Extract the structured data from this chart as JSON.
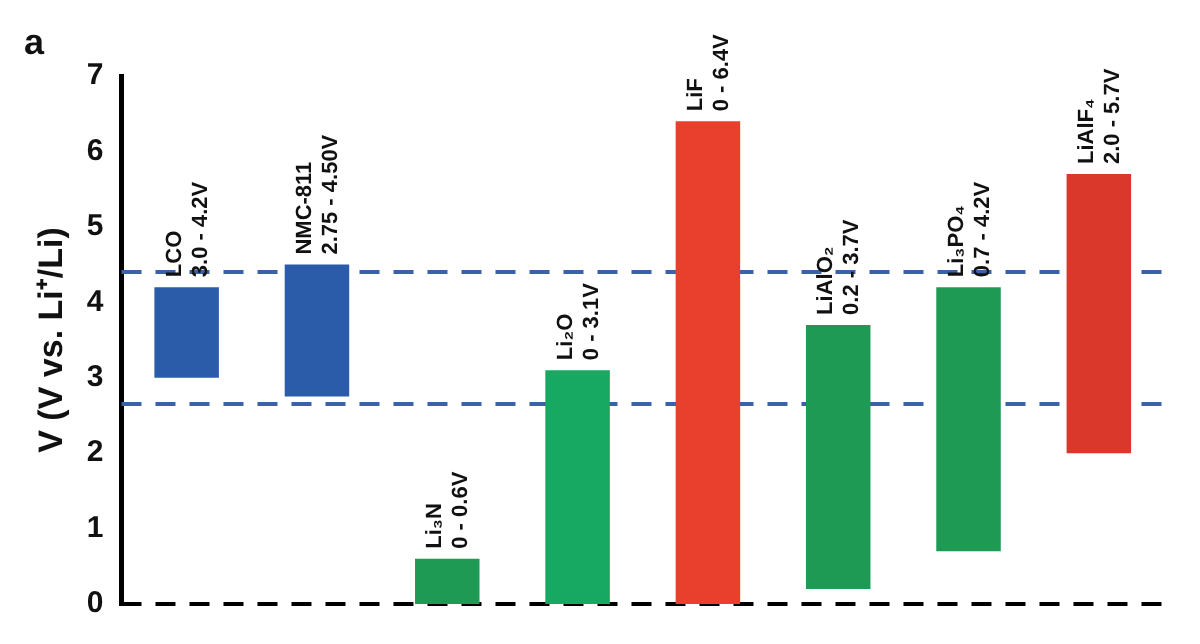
{
  "chart_data": {
    "type": "bar",
    "annotations": [
      "a",
      {
        "text": "3.0 - 4.2V",
        "x": "LCO",
        "y": 4.2
      },
      {
        "text": "2.75 - 4.50V",
        "x": "NMC-811",
        "y": 4.5
      },
      {
        "text": "0 - 0.6V",
        "x": "Li₃N",
        "y": 0.6
      },
      {
        "text": "0 - 3.1V",
        "x": "Li₂O",
        "y": 3.1
      },
      {
        "text": "0 - 6.4V",
        "x": "LiF",
        "y": 6.4
      },
      {
        "text": "0.2 - 3.7V",
        "x": "LiAlO₂",
        "y": 3.7
      },
      {
        "text": "0.7 - 4.2V",
        "x": "Li₃PO₄",
        "y": 4.2
      },
      {
        "text": "2.0 - 5.7V",
        "x": "LiAlF₄",
        "y": 5.7
      }
    ],
    "ylabel": "V (V vs. Li⁺/Li)",
    "categories": [
      "LCO",
      "NMC-811",
      "Li₃N",
      "Li₂O",
      "LiF",
      "LiAlO₂",
      "Li₃PO₄",
      "LiAlF₄"
    ],
    "base": [
      3.0,
      2.75,
      0,
      0,
      0,
      0.2,
      0.7,
      2.0
    ],
    "values": [
      1.2,
      1.75,
      0.6,
      3.1,
      6.4,
      3.5,
      3.5,
      3.7
    ],
    "colors": [
      "#2a5caa",
      "#2a5caa",
      "#1f9a55",
      "#17a862",
      "#e8402c",
      "#1f9a55",
      "#1f9a55",
      "#d9382a"
    ],
    "ylim": [
      0,
      7
    ],
    "yticks": [
      0,
      1,
      2,
      3,
      4,
      5,
      6,
      7
    ],
    "grid": false,
    "legend": false,
    "tick_labels": "y",
    "ref_lines": [
      {
        "axis": "y",
        "value": 4.4,
        "color": "#3a62a8",
        "line_style": "dashed"
      },
      {
        "axis": "y",
        "value": 2.65,
        "color": "#3a62a8",
        "line_style": "dashed"
      },
      {
        "axis": "y",
        "value": 0,
        "color": "#000000",
        "line_style": "dashed"
      }
    ]
  }
}
